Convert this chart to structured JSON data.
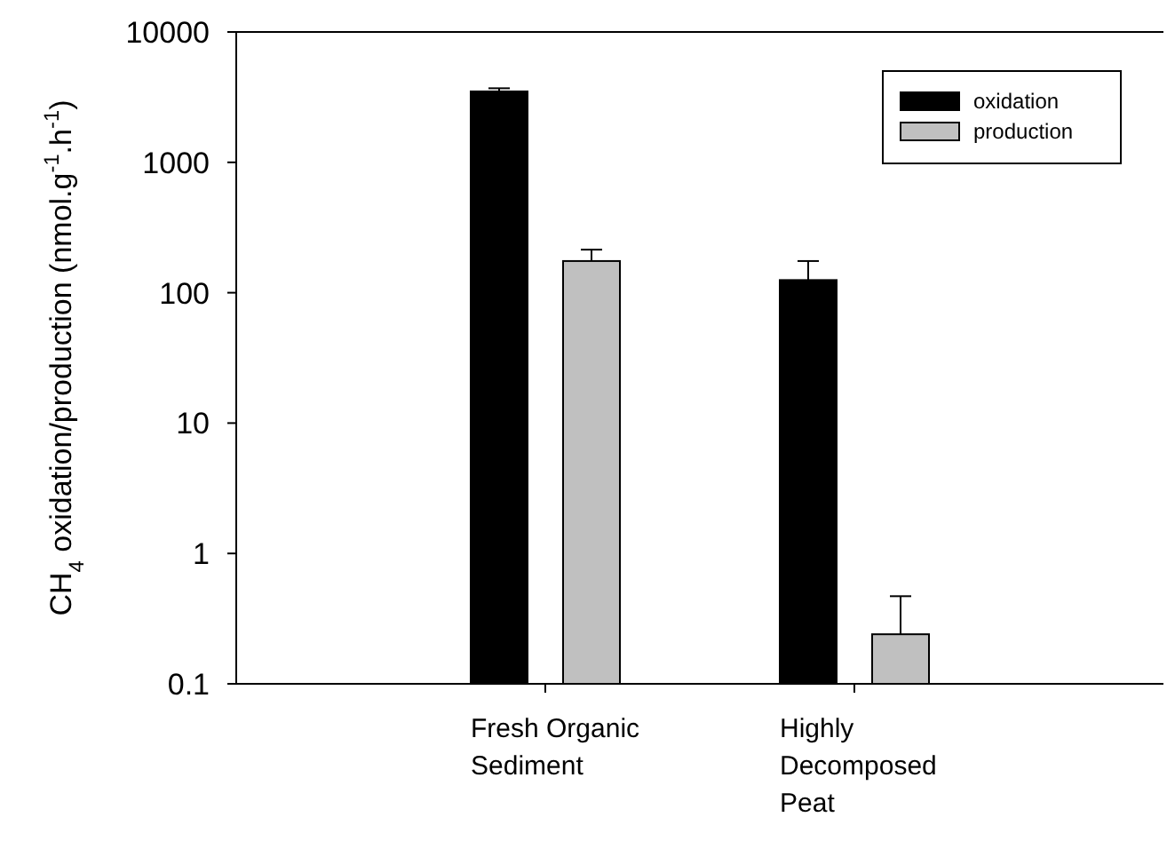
{
  "chart_data": {
    "type": "bar",
    "ylabel": "CH$_{4}$ oxidation/production (nmol.g$^{-1}$.h$^{-1}$)",
    "categories": [
      "Fresh Organic Sediment",
      "Highly Decomposed Peat"
    ],
    "series": [
      {
        "name": "oxidation",
        "color": "#000000",
        "values": [
          3500,
          125
        ],
        "errors": [
          [
            3500,
            3700
          ],
          [
            125,
            175
          ]
        ]
      },
      {
        "name": "production",
        "color": "#c0c0c0",
        "values": [
          175,
          0.24
        ],
        "errors": [
          [
            175,
            214
          ],
          [
            0.24,
            0.47
          ]
        ]
      }
    ],
    "log": true,
    "ylim": [
      0.1,
      10000
    ],
    "yticks": [
      0.1,
      1,
      10,
      100,
      1000,
      10000
    ],
    "legend": "top right"
  }
}
